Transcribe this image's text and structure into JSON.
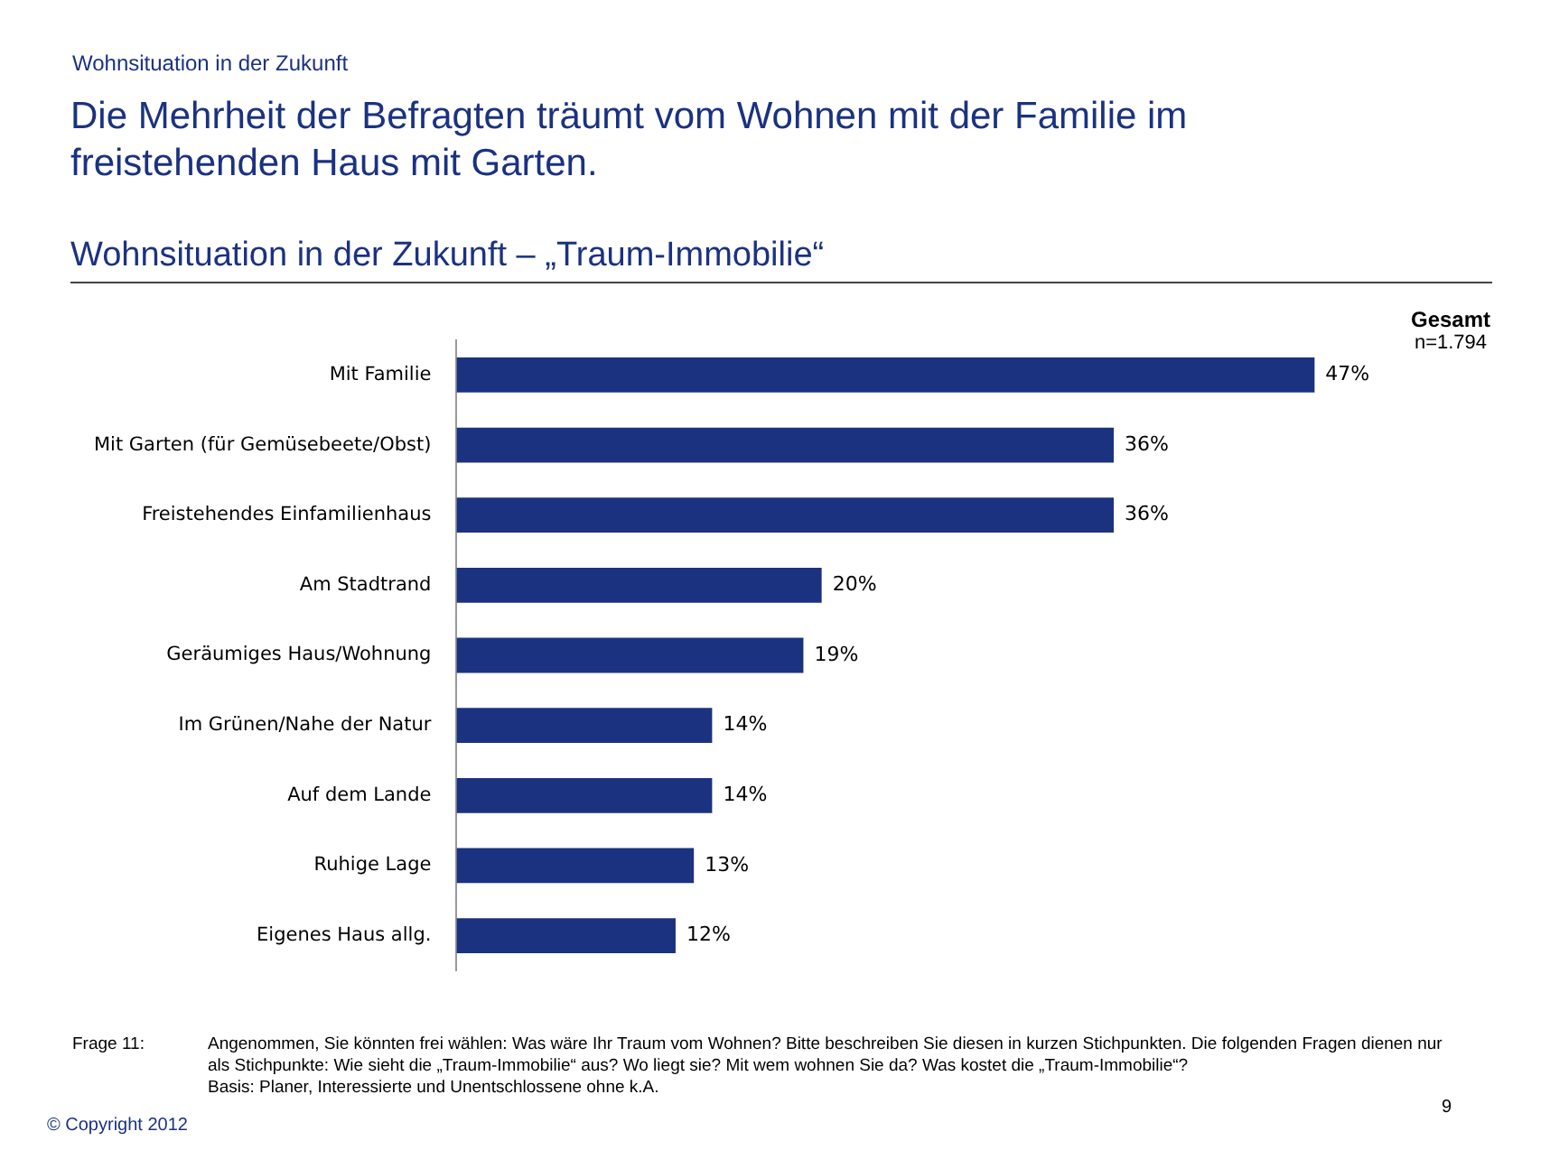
{
  "chart_data": {
    "type": "bar",
    "orientation": "horizontal",
    "title": "Die Mehrheit der Befragten träumt vom Wohnen mit der Familie im freistehenden Haus mit Garten.",
    "subtitle": "Wohnsituation in der Zukunft – „Traum-Immobilie“",
    "categories": [
      "Mit Familie",
      "Mit Garten (für Gemüsebeete/Obst)",
      "Freistehendes Einfamilienhaus",
      "Am Stadtrand",
      "Geräumiges Haus/Wohnung",
      "Im Grünen/Nahe der Natur",
      "Auf dem Lande",
      "Ruhige Lage",
      "Eigenes Haus allg."
    ],
    "values": [
      47,
      36,
      36,
      20,
      19,
      14,
      14,
      13,
      12
    ],
    "value_labels": [
      "47%",
      "36%",
      "36%",
      "20%",
      "19%",
      "14%",
      "14%",
      "13%",
      "12%"
    ],
    "color": "#1b3281",
    "legend": false,
    "annotations": [
      "Wohnsituation in der Zukunft",
      "Gesamt",
      "n=1.794",
      "Frage 11:",
      "Angenommen, Sie könnten frei wählen: Was wäre Ihr Traum vom Wohnen? Bitte beschreiben Sie diesen in kurzen Stichpunkten. Die folgenden Fragen dienen nur als Stichpunkte: Wie sieht die „Traum-Immobilie“ aus? Wo liegt sie? Mit wem wohnen Sie da? Was kostet die „Traum-Immobilie“?",
      "Basis: Planer, Interessierte und Unentschlossene ohne k.A.",
      "9",
      "© Copyright 2012"
    ]
  }
}
